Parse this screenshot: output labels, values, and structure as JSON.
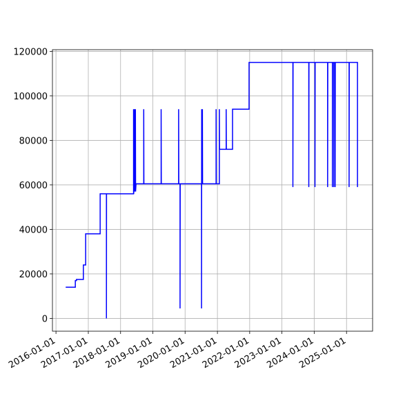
{
  "chart_data": {
    "type": "line",
    "color": "#0000ff",
    "grid": true,
    "x": [
      "2016-04-20",
      "2016-08-07",
      "2016-08-07",
      "2016-08-20",
      "2016-08-20",
      "2016-11-06",
      "2016-11-06",
      "2016-12-02",
      "2016-12-02",
      "2017-05-15",
      "2017-05-15",
      "2017-07-25",
      "2017-07-25",
      "2017-07-26",
      "2018-05-28",
      "2018-05-28",
      "2018-05-30",
      "2018-06-05",
      "2018-06-08",
      "2018-06-12",
      "2018-06-15",
      "2018-06-18",
      "2018-06-20",
      "2018-06-25",
      "2018-09-20",
      "2018-09-20",
      "2018-09-22",
      "2019-04-05",
      "2019-04-05",
      "2019-04-07",
      "2019-10-20",
      "2019-10-20",
      "2019-10-22",
      "2019-11-05",
      "2019-11-05",
      "2019-11-07",
      "2020-07-05",
      "2020-07-05",
      "2020-07-07",
      "2020-07-09",
      "2020-07-15",
      "2020-07-15",
      "2020-07-17",
      "2020-12-17",
      "2020-12-17",
      "2020-12-19",
      "2021-01-23",
      "2021-01-23",
      "2021-01-25",
      "2021-04-10",
      "2021-04-10",
      "2021-04-12",
      "2021-06-21",
      "2021-06-21",
      "2021-12-25",
      "2021-12-25",
      "2023-05-05",
      "2023-05-05",
      "2023-05-07",
      "2023-11-01",
      "2023-11-01",
      "2023-11-03",
      "2024-01-10",
      "2024-01-10",
      "2024-01-12",
      "2024-06-01",
      "2024-06-01",
      "2024-06-03",
      "2024-07-25",
      "2024-07-25",
      "2024-07-27",
      "2024-08-10",
      "2024-08-10",
      "2024-08-12",
      "2024-08-25",
      "2024-08-25",
      "2024-08-27",
      "2025-01-30",
      "2025-01-30",
      "2025-02-01",
      "2025-05-05",
      "2025-05-05"
    ],
    "values": [
      14000,
      14000,
      17000,
      17000,
      17500,
      17500,
      24000,
      24000,
      38000,
      38000,
      56000,
      56000,
      0,
      56000,
      56000,
      94000,
      56000,
      94000,
      57000,
      94000,
      57000,
      94000,
      57000,
      60500,
      60500,
      94000,
      60500,
      60500,
      94000,
      60500,
      60500,
      94000,
      60500,
      60500,
      4500,
      60500,
      60500,
      4500,
      94000,
      60500,
      60500,
      94000,
      60500,
      60500,
      94000,
      60500,
      60500,
      94000,
      76000,
      76000,
      94000,
      76000,
      76000,
      94000,
      94000,
      115000,
      115000,
      59000,
      115000,
      115000,
      59000,
      115000,
      115000,
      59000,
      115000,
      115000,
      59000,
      115000,
      115000,
      59000,
      115000,
      115000,
      59000,
      115000,
      115000,
      59000,
      115000,
      115000,
      59000,
      115000,
      115000,
      59000
    ],
    "xlim": [
      "2015-11-22",
      "2025-10-23"
    ],
    "xticks": [
      "2016-01-01",
      "2017-01-01",
      "2018-01-01",
      "2019-01-01",
      "2020-01-01",
      "2021-01-01",
      "2022-01-01",
      "2023-01-01",
      "2024-01-01",
      "2025-01-01"
    ],
    "ylim": [
      -5750,
      120750
    ],
    "yticks": [
      0,
      20000,
      40000,
      60000,
      80000,
      100000,
      120000
    ]
  }
}
